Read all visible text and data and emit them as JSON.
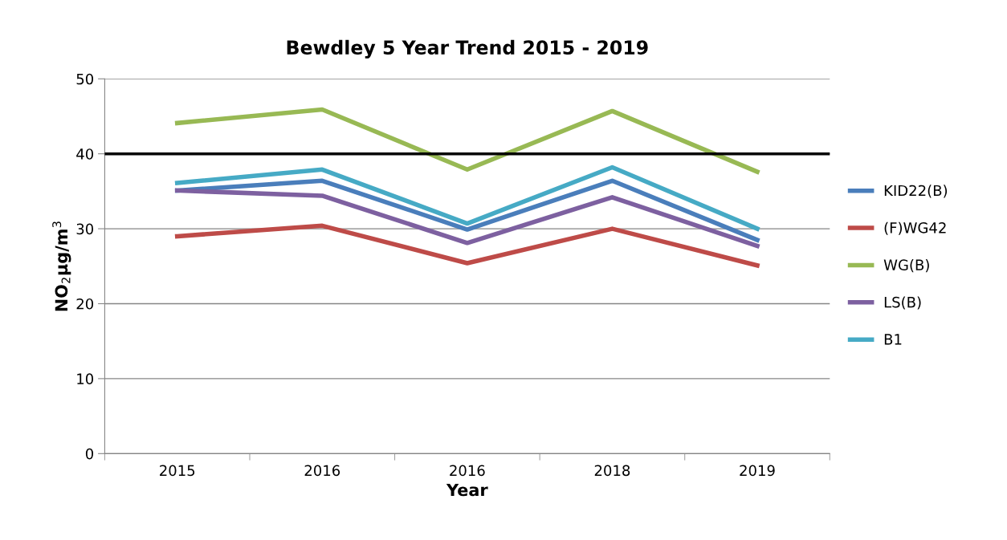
{
  "chart_data": {
    "type": "line",
    "title": "Bewdley 5 Year Trend 2015 - 2019",
    "xlabel": "Year",
    "ylabel": "NO$_{2}$µg/m$^{3}$",
    "categories": [
      "2015",
      "2016",
      "2016",
      "2018",
      "2019"
    ],
    "series": [
      {
        "name": "KID22(B)",
        "color": "#4a7ebb",
        "values": [
          35.1,
          36.4,
          29.9,
          36.4,
          28.5
        ]
      },
      {
        "name": "(F)WG42",
        "color": "#be4b48",
        "values": [
          29.0,
          30.4,
          25.4,
          30.0,
          25.1
        ]
      },
      {
        "name": "WG(B)",
        "color": "#98b954",
        "values": [
          44.1,
          45.9,
          37.9,
          45.7,
          37.6
        ]
      },
      {
        "name": "LS(B)",
        "color": "#7d60a0",
        "values": [
          35.1,
          34.4,
          28.1,
          34.2,
          27.7
        ]
      },
      {
        "name": "B1",
        "color": "#46aac5",
        "values": [
          36.1,
          37.9,
          30.7,
          38.2,
          30.0
        ]
      }
    ],
    "ref_lines": [
      {
        "axis": "y",
        "value": 40,
        "color": "#000000"
      }
    ],
    "ylim": [
      0,
      50
    ],
    "yticks": [
      0,
      10,
      20,
      30,
      40,
      50
    ],
    "grid": "y",
    "legend": "right",
    "marker": "none",
    "line_style": "solid"
  }
}
